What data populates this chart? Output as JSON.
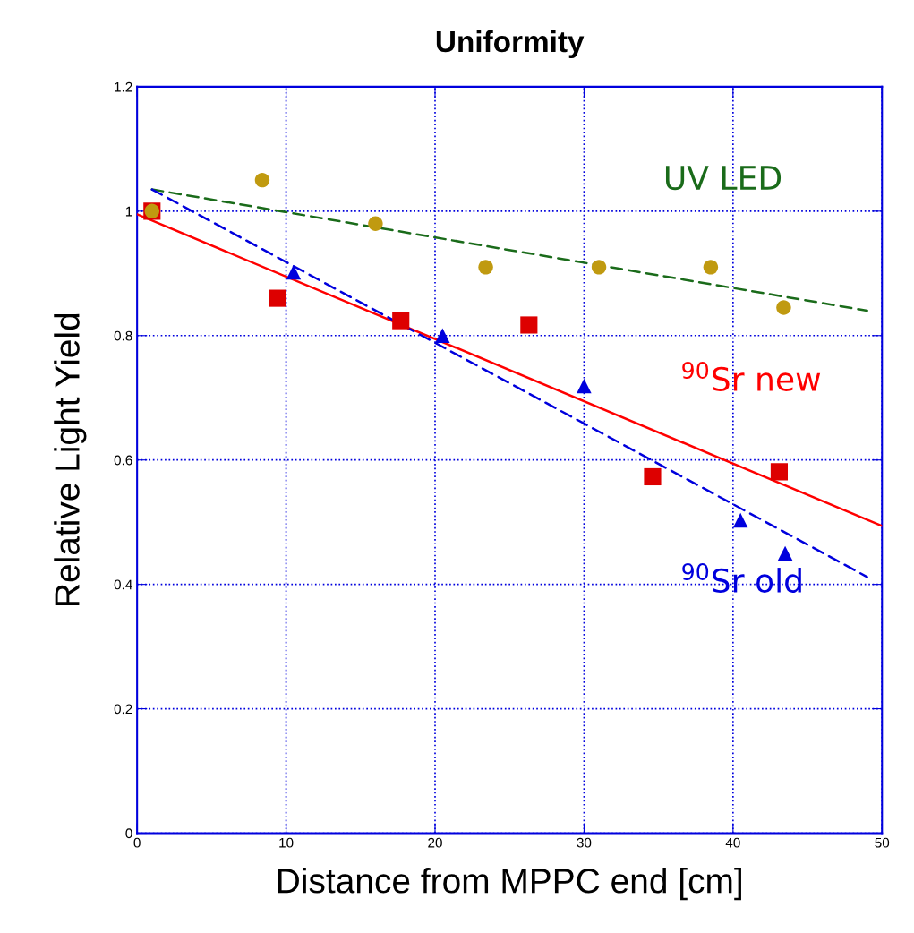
{
  "chart_data": {
    "type": "scatter",
    "title": "Uniformity",
    "xlabel": "Distance from MPPC end [cm]",
    "ylabel": "Relative Light Yield",
    "series": [
      {
        "type": "line",
        "name": "UV LED",
        "color": "#1a6b1a",
        "line_style": "dashed",
        "marker": "none",
        "x": [
          1,
          49
        ],
        "values": [
          1.035,
          0.84
        ]
      },
      {
        "type": "line",
        "name": "$^{90}$Sr new",
        "color": "#ff0000",
        "line_style": "solid",
        "marker": "none",
        "x": [
          0,
          50
        ],
        "values": [
          0.995,
          0.494
        ]
      },
      {
        "type": "line",
        "name": "$^{90}$Sr old",
        "color": "#0000dd",
        "line_style": "dashed",
        "marker": "none",
        "x": [
          1,
          49
        ],
        "values": [
          1.035,
          0.412
        ]
      },
      {
        "color": "#0000dd",
        "marker": "triangle",
        "x": [
          10.5,
          20.5,
          30.0,
          40.5,
          43.5
        ],
        "values": [
          0.902,
          0.8,
          0.719,
          0.503,
          0.45
        ]
      },
      {
        "color": "#dd0000",
        "marker": "square",
        "x": [
          1.0,
          9.4,
          17.7,
          26.3,
          34.6,
          43.1
        ],
        "values": [
          1.0,
          0.86,
          0.824,
          0.817,
          0.573,
          0.581
        ]
      },
      {
        "color": "#c09a10",
        "marker": "circle",
        "x": [
          1.0,
          8.4,
          16.0,
          23.4,
          31.0,
          38.5,
          43.4
        ],
        "values": [
          1.0,
          1.05,
          0.98,
          0.91,
          0.91,
          0.91,
          0.845
        ]
      }
    ],
    "xlim": [
      0,
      50
    ],
    "xticks": [
      0,
      10,
      20,
      30,
      40,
      50
    ],
    "ylim": [
      0,
      1.2
    ],
    "yticks": [
      0,
      0.2,
      0.4,
      0.6,
      0.8,
      1,
      1.2
    ],
    "grid": true
  }
}
